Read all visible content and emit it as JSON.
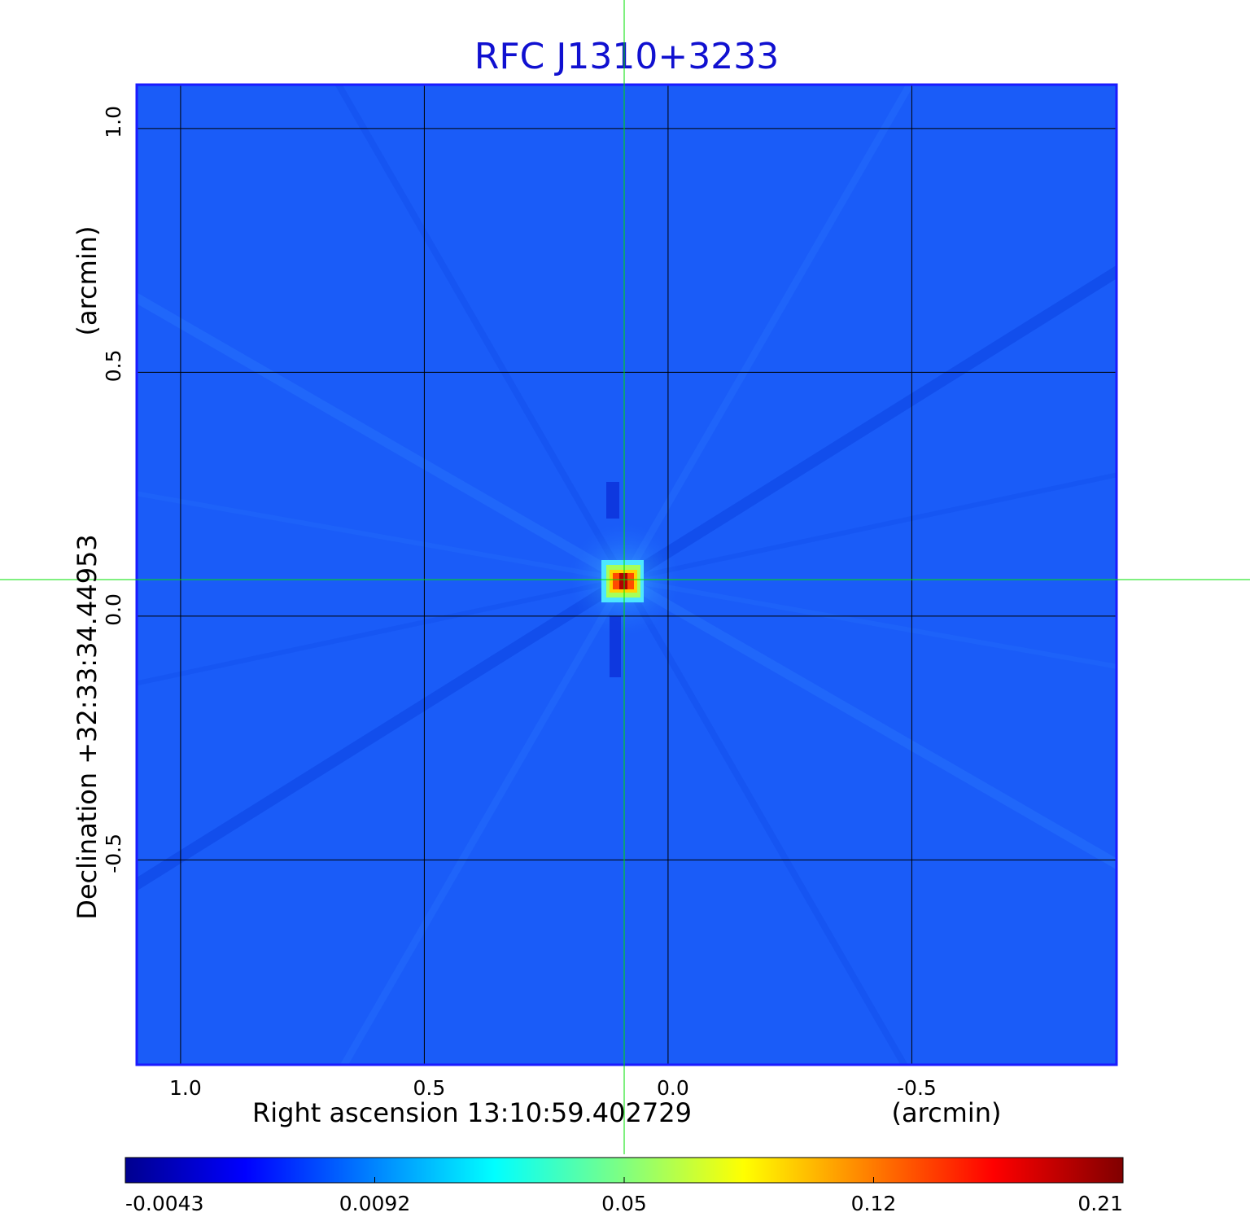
{
  "chart_data": {
    "type": "heatmap",
    "title": "RFC J1310+3233",
    "xlabel": "Right ascension  13:10:59.402729",
    "xunit": "(arcmin)",
    "ylabel": "Declination  +32:33:34.44953",
    "yunit": "(arcmin)",
    "x_ticks": [
      "1.0",
      "0.5",
      "0.0",
      "-0.5"
    ],
    "y_ticks": [
      "1.0",
      "0.5",
      "0.0",
      "-0.5"
    ],
    "xlim": [
      1.09,
      -0.92
    ],
    "ylim": [
      -0.92,
      1.09
    ],
    "grid": true,
    "colorbar": {
      "ticks": [
        "-0.0043",
        "0.0092",
        "0.05",
        "0.12",
        "0.21"
      ],
      "range": [
        -0.0043,
        0.21
      ],
      "colormap": "jet"
    },
    "source_position": [
      0.09,
      0.075
    ],
    "peak_value": 0.21,
    "background_value": 0.003
  },
  "colors": {
    "title": "#1010d0",
    "frame": "#1a1aff",
    "crosshair": "#00e000",
    "grid": "#000000"
  }
}
